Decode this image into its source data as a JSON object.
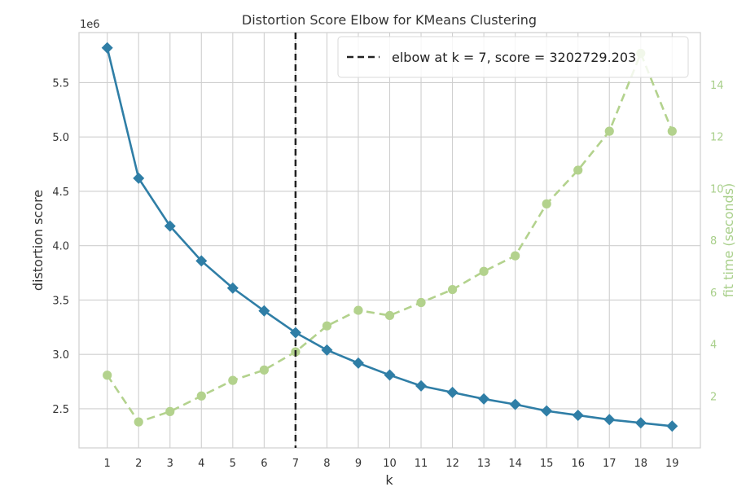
{
  "chart_data": {
    "type": "line",
    "title": "Distortion Score Elbow for KMeans Clustering",
    "xlabel": "k",
    "ylabel": "distortion score",
    "y2label": "fit time (seconds)",
    "offset_text": "1e6",
    "x": [
      1,
      2,
      3,
      4,
      5,
      6,
      7,
      8,
      9,
      10,
      11,
      12,
      13,
      14,
      15,
      16,
      17,
      18,
      19
    ],
    "xlim": [
      0.1,
      19.9
    ],
    "ylim": [
      2.14,
      5.96
    ],
    "y2lim": [
      0.0,
      16.0
    ],
    "x_ticks": [
      "1",
      "2",
      "3",
      "4",
      "5",
      "6",
      "7",
      "8",
      "9",
      "10",
      "11",
      "12",
      "13",
      "14",
      "15",
      "16",
      "17",
      "18",
      "19"
    ],
    "y_ticks": [
      {
        "value": 2.5,
        "label": "2.5"
      },
      {
        "value": 3.0,
        "label": "3.0"
      },
      {
        "value": 3.5,
        "label": "3.5"
      },
      {
        "value": 4.0,
        "label": "4.0"
      },
      {
        "value": 4.5,
        "label": "4.5"
      },
      {
        "value": 5.0,
        "label": "5.0"
      },
      {
        "value": 5.5,
        "label": "5.5"
      }
    ],
    "y2_ticks": [
      {
        "value": 2,
        "label": "2"
      },
      {
        "value": 4,
        "label": "4"
      },
      {
        "value": 6,
        "label": "6"
      },
      {
        "value": 8,
        "label": "8"
      },
      {
        "value": 10,
        "label": "10"
      },
      {
        "value": 12,
        "label": "12"
      },
      {
        "value": 14,
        "label": "14"
      }
    ],
    "series": [
      {
        "axis": "left",
        "style": "solid",
        "marker": "diamond",
        "values": [
          5.82,
          4.62,
          4.18,
          3.86,
          3.61,
          3.4,
          3.2,
          3.04,
          2.92,
          2.81,
          2.71,
          2.65,
          2.59,
          2.54,
          2.48,
          2.44,
          2.4,
          2.37,
          2.34
        ]
      },
      {
        "axis": "right",
        "style": "dashed",
        "marker": "circle",
        "values": [
          2.8,
          1.0,
          1.4,
          2.0,
          2.6,
          3.0,
          3.7,
          4.7,
          5.3,
          5.1,
          5.6,
          6.1,
          6.8,
          7.4,
          9.4,
          10.7,
          12.2,
          15.2,
          12.2
        ]
      }
    ],
    "elbow": {
      "k": 7,
      "legend_text": "elbow at k = 7, score = 3202729.203"
    },
    "grid": true,
    "legend_position": "top-right",
    "colors": {
      "distortion": "#2f7ea6",
      "fit_time": "#b3d28d",
      "fit_time_label": "#a8cf8a",
      "elbow": "#222222",
      "grid": "#cfcfcf",
      "axis_text": "#333333",
      "frame": "#cfcfcf"
    }
  }
}
